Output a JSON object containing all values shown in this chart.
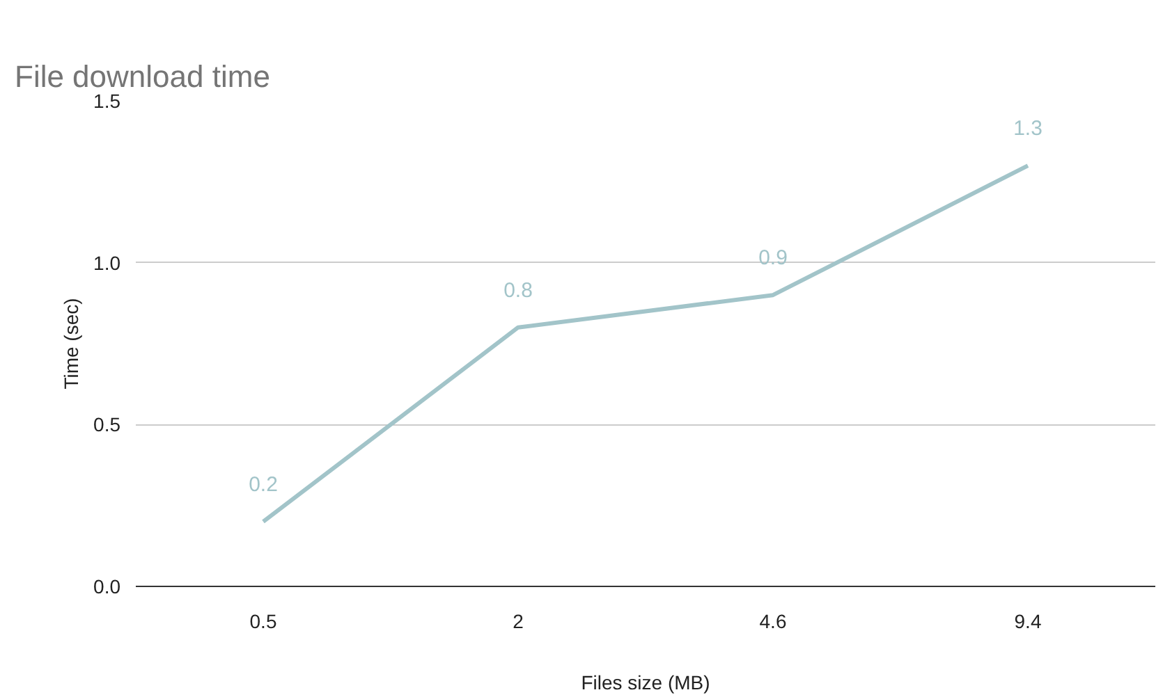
{
  "chart_data": {
    "type": "line",
    "title": "File download time",
    "xlabel": "Files size (MB)",
    "ylabel": "Time (sec)",
    "categories": [
      "0.5",
      "2",
      "4.6",
      "9.4"
    ],
    "series": [
      {
        "color": "#a2c4c9",
        "values": [
          0.2,
          0.8,
          0.9,
          1.3
        ]
      }
    ],
    "ylim": [
      0,
      1.5
    ],
    "yticks": [
      {
        "value": 0,
        "label": "0.0"
      },
      {
        "value": 0.5,
        "label": "0.5"
      },
      {
        "value": 1,
        "label": "1.0"
      },
      {
        "value": 1.5,
        "label": "1.5"
      }
    ],
    "grid": "y",
    "data_labels": true,
    "marker": "none",
    "line_style": "solid"
  }
}
